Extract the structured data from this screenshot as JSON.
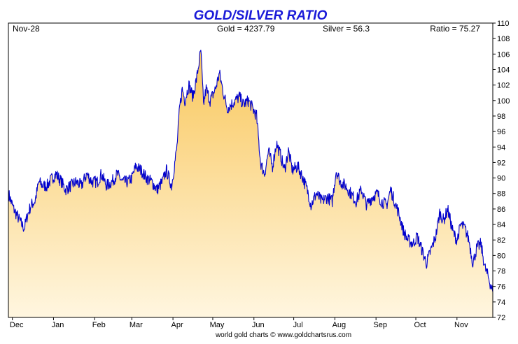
{
  "chart_data": {
    "type": "area",
    "title": "GOLD/SILVER RATIO",
    "header": {
      "date": "Nov-28",
      "gold": "Gold = 4237.79",
      "silver": "Silver = 56.3",
      "ratio": "Ratio = 75.27"
    },
    "footer": "world gold charts © www.goldchartsrus.com",
    "xlabel": "",
    "ylabel": "",
    "ylim": [
      72,
      110
    ],
    "yticks": [
      72,
      74,
      76,
      78,
      80,
      82,
      84,
      86,
      88,
      90,
      92,
      94,
      96,
      98,
      100,
      102,
      104,
      106,
      108,
      110
    ],
    "yaxis_position": "right",
    "grid": false,
    "xlim": [
      "2024-11-28",
      "2025-11-28"
    ],
    "months": [
      {
        "label": "Dec",
        "date": "2024-12-01"
      },
      {
        "label": "Jan",
        "date": "2025-01-01"
      },
      {
        "label": "Feb",
        "date": "2025-02-01"
      },
      {
        "label": "Mar",
        "date": "2025-03-01"
      },
      {
        "label": "Apr",
        "date": "2025-04-01"
      },
      {
        "label": "May",
        "date": "2025-05-01"
      },
      {
        "label": "Jun",
        "date": "2025-06-01"
      },
      {
        "label": "Jul",
        "date": "2025-07-01"
      },
      {
        "label": "Aug",
        "date": "2025-08-01"
      },
      {
        "label": "Sep",
        "date": "2025-09-01"
      },
      {
        "label": "Oct",
        "date": "2025-10-01"
      },
      {
        "label": "Nov",
        "date": "2025-11-01"
      }
    ],
    "colors": {
      "title": "#1a1ad8",
      "line": "#0000cc",
      "fill_top": "#f9c75c",
      "fill_bottom": "#fff6e0"
    },
    "series": [
      {
        "values": [
          [
            "2024-11-28",
            88.0
          ],
          [
            "2024-12-02",
            86.0
          ],
          [
            "2024-12-05",
            85.0
          ],
          [
            "2024-12-08",
            84.0
          ],
          [
            "2024-12-10",
            83.5
          ],
          [
            "2024-12-12",
            85.0
          ],
          [
            "2024-12-15",
            86.5
          ],
          [
            "2024-12-18",
            87.0
          ],
          [
            "2024-12-21",
            89.5
          ],
          [
            "2024-12-24",
            89.0
          ],
          [
            "2024-12-27",
            89.0
          ],
          [
            "2024-12-31",
            90.0
          ],
          [
            "2025-01-03",
            90.5
          ],
          [
            "2025-01-07",
            89.5
          ],
          [
            "2025-01-10",
            88.5
          ],
          [
            "2025-01-14",
            89.0
          ],
          [
            "2025-01-18",
            89.5
          ],
          [
            "2025-01-22",
            89.0
          ],
          [
            "2025-01-26",
            90.5
          ],
          [
            "2025-01-30",
            89.5
          ],
          [
            "2025-02-03",
            89.5
          ],
          [
            "2025-02-06",
            90.5
          ],
          [
            "2025-02-10",
            89.0
          ],
          [
            "2025-02-14",
            89.5
          ],
          [
            "2025-02-18",
            90.5
          ],
          [
            "2025-02-22",
            89.5
          ],
          [
            "2025-02-26",
            89.5
          ],
          [
            "2025-03-01",
            90.0
          ],
          [
            "2025-03-04",
            91.5
          ],
          [
            "2025-03-08",
            91.0
          ],
          [
            "2025-03-12",
            90.0
          ],
          [
            "2025-03-16",
            89.5
          ],
          [
            "2025-03-20",
            88.5
          ],
          [
            "2025-03-24",
            89.5
          ],
          [
            "2025-03-27",
            91.0
          ],
          [
            "2025-03-31",
            89.0
          ],
          [
            "2025-04-02",
            91.5
          ],
          [
            "2025-04-04",
            94.0
          ],
          [
            "2025-04-06",
            99.0
          ],
          [
            "2025-04-08",
            101.5
          ],
          [
            "2025-04-10",
            100.0
          ],
          [
            "2025-04-13",
            102.0
          ],
          [
            "2025-04-16",
            100.5
          ],
          [
            "2025-04-19",
            103.0
          ],
          [
            "2025-04-22",
            106.5
          ],
          [
            "2025-04-24",
            99.5
          ],
          [
            "2025-04-26",
            101.5
          ],
          [
            "2025-04-29",
            100.0
          ],
          [
            "2025-05-03",
            101.5
          ],
          [
            "2025-05-06",
            103.5
          ],
          [
            "2025-05-09",
            101.0
          ],
          [
            "2025-05-12",
            99.0
          ],
          [
            "2025-05-15",
            99.5
          ],
          [
            "2025-05-18",
            100.0
          ],
          [
            "2025-05-21",
            100.5
          ],
          [
            "2025-05-24",
            99.5
          ],
          [
            "2025-05-28",
            100.0
          ],
          [
            "2025-05-31",
            99.0
          ],
          [
            "2025-06-03",
            98.0
          ],
          [
            "2025-06-06",
            92.0
          ],
          [
            "2025-06-09",
            90.5
          ],
          [
            "2025-06-12",
            93.5
          ],
          [
            "2025-06-15",
            91.5
          ],
          [
            "2025-06-18",
            94.5
          ],
          [
            "2025-06-21",
            93.0
          ],
          [
            "2025-06-24",
            91.0
          ],
          [
            "2025-06-27",
            93.5
          ],
          [
            "2025-06-30",
            91.0
          ],
          [
            "2025-07-04",
            91.5
          ],
          [
            "2025-07-08",
            90.0
          ],
          [
            "2025-07-12",
            88.0
          ],
          [
            "2025-07-14",
            86.5
          ],
          [
            "2025-07-18",
            88.0
          ],
          [
            "2025-07-22",
            87.0
          ],
          [
            "2025-07-26",
            87.5
          ],
          [
            "2025-07-30",
            87.0
          ],
          [
            "2025-08-02",
            91.0
          ],
          [
            "2025-08-05",
            89.5
          ],
          [
            "2025-08-09",
            89.0
          ],
          [
            "2025-08-13",
            88.0
          ],
          [
            "2025-08-17",
            87.0
          ],
          [
            "2025-08-21",
            88.5
          ],
          [
            "2025-08-25",
            86.5
          ],
          [
            "2025-08-29",
            87.5
          ],
          [
            "2025-09-02",
            88.0
          ],
          [
            "2025-09-05",
            87.0
          ],
          [
            "2025-09-09",
            86.5
          ],
          [
            "2025-09-12",
            88.5
          ],
          [
            "2025-09-15",
            87.0
          ],
          [
            "2025-09-18",
            85.5
          ],
          [
            "2025-09-22",
            83.0
          ],
          [
            "2025-09-25",
            82.0
          ],
          [
            "2025-09-29",
            81.5
          ],
          [
            "2025-10-02",
            82.5
          ],
          [
            "2025-10-06",
            80.5
          ],
          [
            "2025-10-09",
            79.0
          ],
          [
            "2025-10-13",
            81.0
          ],
          [
            "2025-10-16",
            82.5
          ],
          [
            "2025-10-19",
            85.5
          ],
          [
            "2025-10-22",
            84.5
          ],
          [
            "2025-10-25",
            86.0
          ],
          [
            "2025-10-29",
            83.0
          ],
          [
            "2025-11-01",
            82.0
          ],
          [
            "2025-11-04",
            84.0
          ],
          [
            "2025-11-07",
            83.5
          ],
          [
            "2025-11-10",
            82.0
          ],
          [
            "2025-11-13",
            79.0
          ],
          [
            "2025-11-16",
            81.0
          ],
          [
            "2025-11-19",
            81.5
          ],
          [
            "2025-11-22",
            78.5
          ],
          [
            "2025-11-25",
            77.0
          ],
          [
            "2025-11-28",
            75.3
          ]
        ]
      }
    ]
  }
}
